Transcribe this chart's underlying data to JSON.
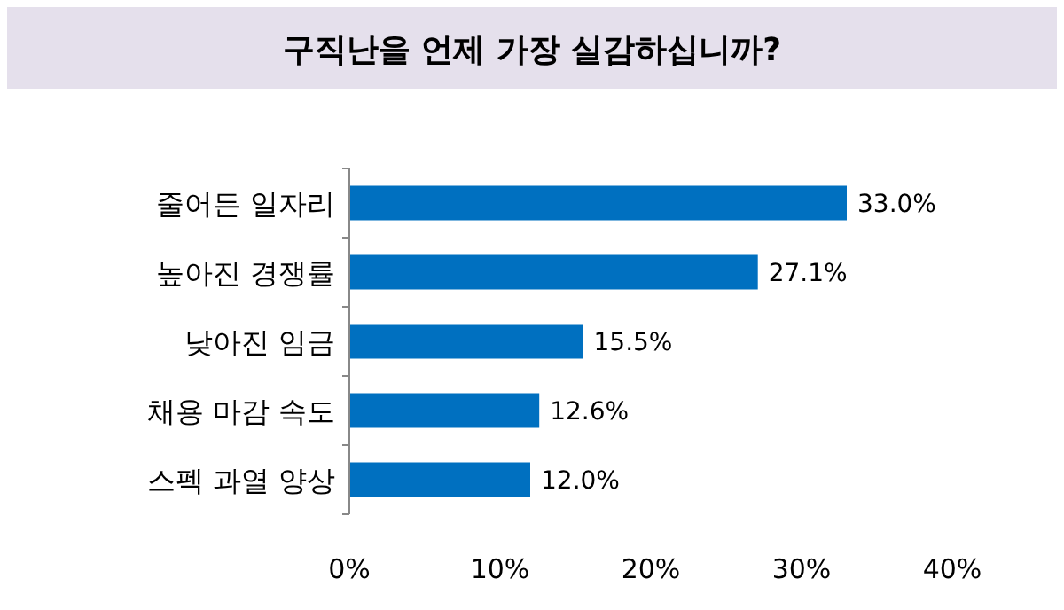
{
  "chart_data": {
    "type": "bar",
    "orientation": "horizontal",
    "title": "구직난을 언제 가장 실감하십니까?",
    "categories": [
      "줄어든 일자리",
      "높아진 경쟁률",
      "낮아진 임금",
      "채용 마감 속도",
      "스펙 과열 양상"
    ],
    "values": [
      33.0,
      27.1,
      15.5,
      12.6,
      12.0
    ],
    "value_labels": [
      "33.0%",
      "27.1%",
      "15.5%",
      "12.6%",
      "12.0%"
    ],
    "color": "#0070c0",
    "xlim": [
      0,
      40
    ],
    "xticks": [
      {
        "value": 0,
        "label": "0%"
      },
      {
        "value": 10,
        "label": "10%"
      },
      {
        "value": 20,
        "label": "20%"
      },
      {
        "value": 30,
        "label": "30%"
      },
      {
        "value": 40,
        "label": "40%"
      }
    ],
    "grid": false
  }
}
